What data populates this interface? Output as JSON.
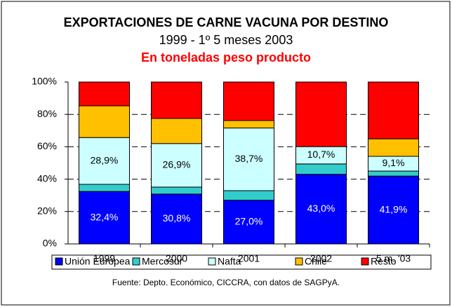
{
  "chart_data": {
    "type": "stacked_bar_percent",
    "title": "EXPORTACIONES DE CARNE VACUNA POR DESTINO",
    "subtitle": "1999 - 1º 5 meses 2003",
    "subtitle2": "En toneladas peso producto",
    "source": "Fuente: Depto. Económico, CICCRA, con datos de SAGPyA.",
    "categories": [
      "1999",
      "2000",
      "2001",
      "2002",
      "5 m. '03"
    ],
    "series": [
      {
        "name": "Unión Europea",
        "color": "#0000ff",
        "values": [
          32.4,
          30.8,
          27.0,
          43.0,
          41.9
        ],
        "value_labels": [
          "32,4%",
          "30,8%",
          "27,0%",
          "43,0%",
          "41,9%"
        ]
      },
      {
        "name": "Mercosur",
        "color": "#33cccc",
        "values": [
          4.4,
          4.3,
          5.9,
          6.4,
          3.1
        ]
      },
      {
        "name": "Nafta",
        "color": "#ccffff",
        "values": [
          28.9,
          26.9,
          38.7,
          10.7,
          9.1
        ],
        "value_labels": [
          "28,9%",
          "26,9%",
          "38,7%",
          "10,7%",
          "9,1%"
        ]
      },
      {
        "name": "Chile",
        "color": "#ffc000",
        "values": [
          19.6,
          15.5,
          4.6,
          0,
          10.8
        ]
      },
      {
        "name": "Resto",
        "color": "#ff0000",
        "values": [
          14.7,
          22.5,
          23.8,
          39.9,
          35.1
        ]
      }
    ],
    "ylim": [
      0,
      100
    ],
    "yticks": [
      {
        "value": 0,
        "label": "0%"
      },
      {
        "value": 20,
        "label": "20%"
      },
      {
        "value": 40,
        "label": "40%"
      },
      {
        "value": 60,
        "label": "60%"
      },
      {
        "value": 80,
        "label": "80%"
      },
      {
        "value": 100,
        "label": "100%"
      }
    ],
    "grid": true,
    "legend": "bottom"
  }
}
